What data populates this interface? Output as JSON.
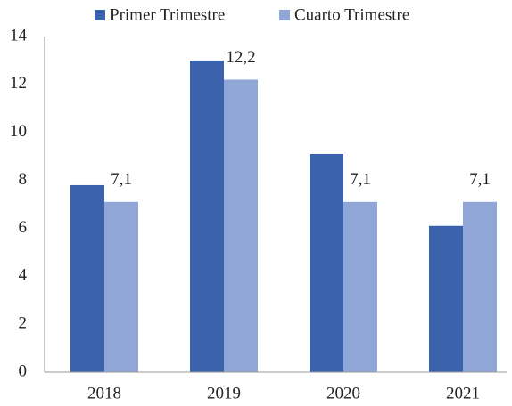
{
  "chart_data": {
    "type": "bar",
    "categories": [
      "2018",
      "2019",
      "2020",
      "2021"
    ],
    "series": [
      {
        "name": "Primer Trimestre",
        "color": "#3b62ac",
        "values": [
          7.8,
          13.0,
          9.1,
          6.1
        ]
      },
      {
        "name": "Cuarto Trimestre",
        "color": "#8fa6d6",
        "values": [
          7.1,
          12.2,
          7.1,
          7.1
        ],
        "value_labels": [
          "7,1",
          "12,2",
          "7,1",
          "7,1"
        ]
      }
    ],
    "ylim": [
      0,
      14
    ],
    "yticks": [
      0,
      2,
      4,
      6,
      8,
      10,
      12,
      14
    ],
    "grid": false,
    "legend": "top"
  }
}
